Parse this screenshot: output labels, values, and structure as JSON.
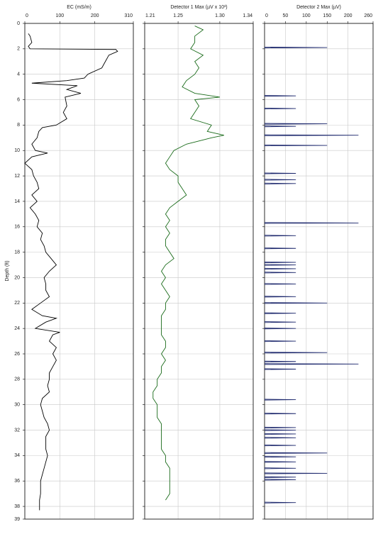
{
  "chart_data": {
    "type": "well-log",
    "y_label": "Depth (ft)",
    "ylim": [
      0,
      39
    ],
    "yticks": [
      0,
      2,
      4,
      6,
      8,
      10,
      12,
      14,
      16,
      18,
      20,
      22,
      24,
      26,
      28,
      30,
      32,
      34,
      36,
      38,
      39
    ],
    "grid": true,
    "tracks": [
      {
        "title": "EC (mS/m)",
        "style": "line",
        "color": "#000000",
        "xlim": [
          0,
          310
        ],
        "xticks": [
          0,
          100,
          200,
          310
        ],
        "depth": [
          0.8,
          1,
          1.5,
          1.8,
          2,
          2.05,
          2.2,
          2.5,
          3,
          3.5,
          4,
          4.3,
          4.5,
          4.7,
          4.9,
          5.2,
          5.5,
          5.8,
          6.5,
          7,
          7.5,
          8,
          8.2,
          8.5,
          9,
          9.5,
          10,
          10.2,
          10.5,
          11,
          11.5,
          12,
          12.5,
          13,
          13.5,
          14,
          14.5,
          15,
          15.5,
          16,
          16.5,
          17,
          17.5,
          18,
          18.5,
          19,
          19.5,
          20,
          20.5,
          21,
          21.5,
          22,
          22.5,
          23,
          23.2,
          23.5,
          24,
          24.3,
          24.5,
          25,
          25.5,
          26,
          26.5,
          27,
          27.5,
          28,
          28.5,
          29,
          29.5,
          30,
          30.5,
          31,
          31.5,
          32,
          32.5,
          33,
          33.5,
          34,
          34.5,
          35,
          35.5,
          36,
          36.5,
          37,
          37.5,
          38,
          38.3
        ],
        "values": [
          10,
          15,
          20,
          10,
          15,
          260,
          265,
          240,
          230,
          220,
          180,
          170,
          120,
          20,
          150,
          120,
          160,
          115,
          120,
          110,
          120,
          90,
          50,
          40,
          35,
          20,
          30,
          65,
          20,
          0,
          20,
          25,
          35,
          40,
          20,
          35,
          15,
          30,
          40,
          35,
          50,
          45,
          55,
          60,
          75,
          90,
          70,
          55,
          60,
          60,
          70,
          45,
          20,
          50,
          90,
          60,
          30,
          100,
          80,
          70,
          90,
          80,
          90,
          80,
          70,
          70,
          65,
          70,
          50,
          45,
          50,
          55,
          65,
          70,
          60,
          60,
          60,
          65,
          60,
          55,
          50,
          45,
          45,
          45,
          42,
          42,
          42
        ]
      },
      {
        "title": "Detector 1 Max (µV x 10³)",
        "style": "line",
        "color": "#1a6b1a",
        "xlim": [
          1.21,
          1.34
        ],
        "xticks": [
          1.21,
          1.25,
          {
            "value": 1.3,
            "label": "1.30"
          },
          1.34
        ],
        "depth": [
          0.2,
          0.5,
          1,
          1.5,
          2,
          2.5,
          3,
          3.5,
          4,
          4.5,
          5,
          5.5,
          5.8,
          6,
          6.5,
          7,
          7.5,
          8,
          8.5,
          8.8,
          9,
          9.5,
          10,
          10.5,
          11,
          11.5,
          12,
          12.5,
          13,
          13.5,
          14,
          14.5,
          15,
          15.5,
          16,
          16.5,
          17,
          17.5,
          18,
          18.5,
          19,
          19.5,
          20,
          20.5,
          21,
          21.5,
          22,
          22.5,
          23,
          23.5,
          24,
          24.5,
          25,
          25.5,
          26,
          26.5,
          27,
          27.5,
          28,
          28.5,
          29,
          29.5,
          30,
          30.5,
          31,
          31.5,
          32,
          32.5,
          33,
          33.5,
          34,
          34.5,
          35,
          35.5,
          36,
          36.5,
          37,
          37.5
        ],
        "values": [
          1.27,
          1.28,
          1.27,
          1.27,
          1.265,
          1.28,
          1.27,
          1.275,
          1.27,
          1.26,
          1.255,
          1.27,
          1.3,
          1.27,
          1.275,
          1.27,
          1.265,
          1.29,
          1.285,
          1.305,
          1.29,
          1.26,
          1.245,
          1.24,
          1.235,
          1.24,
          1.25,
          1.25,
          1.255,
          1.26,
          1.25,
          1.24,
          1.235,
          1.24,
          1.235,
          1.24,
          1.235,
          1.235,
          1.24,
          1.245,
          1.235,
          1.23,
          1.235,
          1.23,
          1.235,
          1.24,
          1.235,
          1.235,
          1.23,
          1.23,
          1.23,
          1.23,
          1.235,
          1.235,
          1.23,
          1.235,
          1.23,
          1.23,
          1.225,
          1.225,
          1.22,
          1.22,
          1.225,
          1.225,
          1.225,
          1.23,
          1.23,
          1.23,
          1.23,
          1.23,
          1.235,
          1.235,
          1.24,
          1.24,
          1.24,
          1.24,
          1.24,
          1.235
        ]
      },
      {
        "title": "Detector 2 Max (µV)",
        "style": "spikes",
        "color": "#1f2a6e",
        "xlim": [
          0,
          260
        ],
        "xticks": [
          0,
          50,
          100,
          150,
          200,
          260
        ],
        "depth": [
          1.9,
          5.7,
          6.7,
          7.9,
          8.1,
          8.8,
          9.6,
          11.8,
          12.3,
          12.6,
          15.7,
          16.7,
          17.7,
          18.8,
          19,
          19.3,
          19.6,
          20.5,
          21.5,
          22,
          22.8,
          23.5,
          24,
          25,
          25.9,
          26.6,
          26.8,
          27.2,
          29.6,
          30.7,
          31.8,
          32,
          32.3,
          32.6,
          33.2,
          33.8,
          34.1,
          34.5,
          35,
          35.4,
          35.7,
          35.9,
          37.7
        ],
        "values": [
          150,
          75,
          75,
          150,
          75,
          225,
          150,
          75,
          75,
          75,
          225,
          75,
          75,
          75,
          75,
          75,
          75,
          75,
          75,
          150,
          75,
          75,
          75,
          75,
          150,
          75,
          225,
          75,
          75,
          75,
          75,
          75,
          75,
          75,
          75,
          150,
          75,
          75,
          75,
          150,
          75,
          75,
          75
        ]
      }
    ]
  }
}
